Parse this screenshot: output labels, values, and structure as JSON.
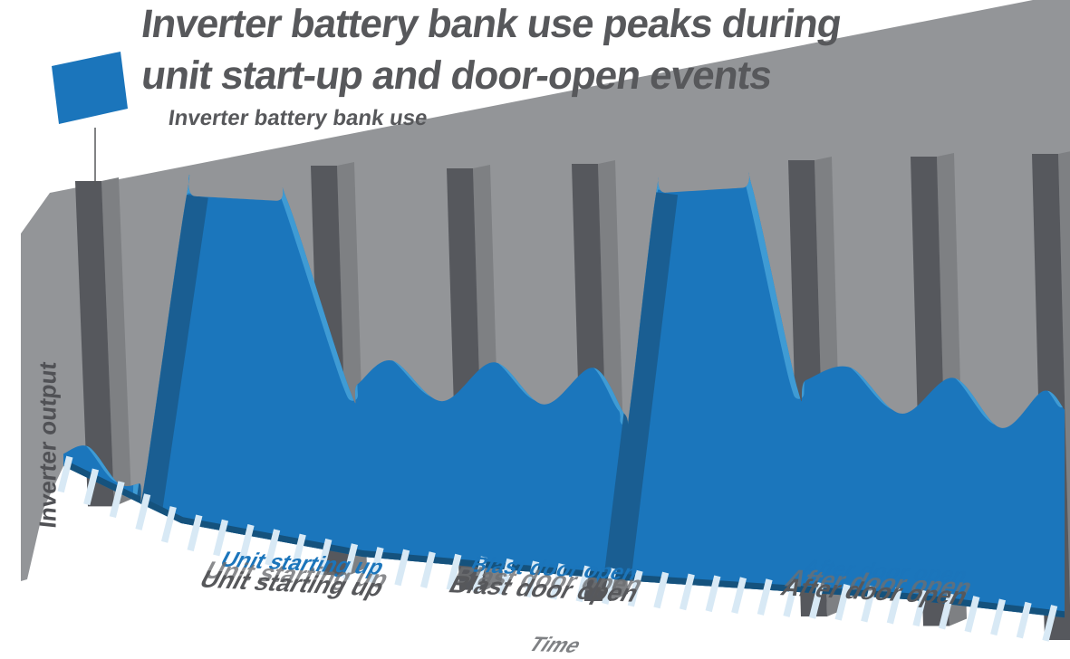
{
  "figure": {
    "title_line1": "Inverter battery bank use peaks during",
    "title_line2": "unit start-up and door-open events",
    "legend": {
      "label": "Inverter battery bank use",
      "swatch_color": "#1B75BB"
    },
    "y_axis_label": "Inverter output",
    "x_axis_label": "Time",
    "event_labels": [
      "Unit starting up",
      "Blast door open",
      "After door open"
    ],
    "colors": {
      "area_front": "#1B76BC",
      "area_top_face": "#3F9BD4",
      "area_side_face": "#1A5E92",
      "area_bottom_edge": "#15527D",
      "backdrop_gray": "#939598",
      "wall_gray": "#56585D",
      "wall_side_gray": "#7E8083",
      "text_gray": "#57585B",
      "hatch": "#D8E9F5"
    }
  },
  "chart_data": {
    "type": "area",
    "style": "3d-perspective infographic area chart",
    "title": "Inverter battery bank use peaks during unit start-up and door-open events",
    "xlabel": "Time",
    "ylabel": "Inverter output",
    "legend_entries": [
      "Inverter battery bank use"
    ],
    "legend_position": "top-left",
    "grid": false,
    "x_unit": "relative time 0-100 (no numeric scale shown)",
    "y_unit": "relative use 0-100 (no numeric scale shown)",
    "ylim": [
      0,
      100
    ],
    "series": [
      {
        "name": "Inverter battery bank use",
        "points": [
          [
            0,
            4
          ],
          [
            2.5,
            10
          ],
          [
            5.5,
            3
          ],
          [
            7.6,
            6
          ],
          [
            8.1,
            7
          ],
          [
            12.3,
            100
          ],
          [
            13.2,
            100
          ],
          [
            21.2,
            100
          ],
          [
            22.4,
            100
          ],
          [
            28.6,
            47
          ],
          [
            29.4,
            49
          ],
          [
            32.8,
            56
          ],
          [
            37.8,
            45
          ],
          [
            43,
            56
          ],
          [
            48,
            45
          ],
          [
            52.9,
            55
          ],
          [
            56.1,
            43
          ],
          [
            56.6,
            45
          ],
          [
            59.2,
            100
          ],
          [
            60.2,
            100
          ],
          [
            67.8,
            100
          ],
          [
            68.8,
            100
          ],
          [
            73.3,
            50
          ],
          [
            74.2,
            52
          ],
          [
            78.6,
            55
          ],
          [
            83.7,
            44
          ],
          [
            88.9,
            53
          ],
          [
            93.7,
            42
          ],
          [
            97.9,
            51
          ],
          [
            100,
            47
          ]
        ]
      }
    ],
    "annotations": [
      {
        "label": "Unit starting up",
        "t_center": 23.5,
        "t_range": [
          8,
          29
        ],
        "meaning": "first high plateau"
      },
      {
        "label": "Blast door open",
        "t_center": 48.7,
        "t_range": [
          56,
          74
        ],
        "meaning": "second high plateau"
      },
      {
        "label": "After door open",
        "t_center": 81.7,
        "t_range": [
          74,
          100
        ],
        "meaning": "return to cyclic use"
      }
    ],
    "event_wall_positions_t": [
      1.3,
      24.8,
      38.4,
      50.9,
      72.5,
      84.7,
      96.8
    ]
  }
}
